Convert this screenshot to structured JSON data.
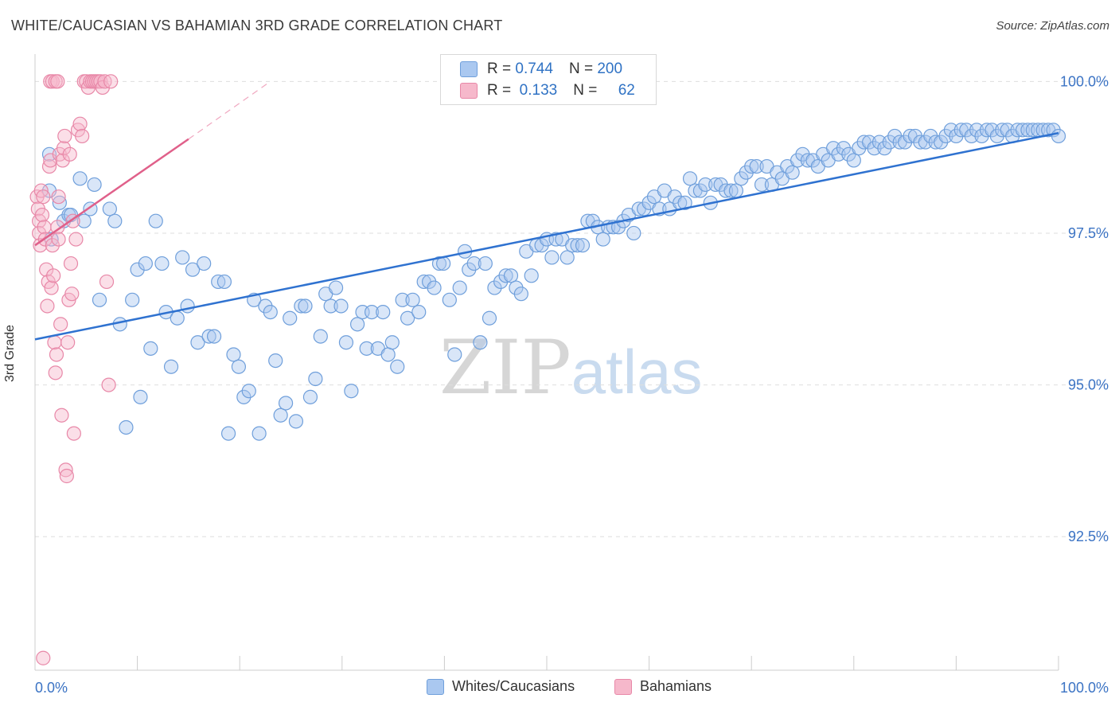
{
  "header": {
    "title": "WHITE/CAUCASIAN VS BAHAMIAN 3RD GRADE CORRELATION CHART",
    "source": "Source: ZipAtlas.com"
  },
  "watermark": {
    "zip": "ZIP",
    "atlas": "atlas"
  },
  "legend": {
    "r_label": "R =",
    "n_label": "N =",
    "series": [
      {
        "r": "0.744",
        "n": "200",
        "fill": "#aac8f0",
        "stroke": "#6f9fdb"
      },
      {
        "r": "0.133",
        "n": "62",
        "fill": "#f6b8cb",
        "stroke": "#e888a8"
      }
    ]
  },
  "chart_data": {
    "type": "scatter",
    "title": "WHITE/CAUCASIAN VS BAHAMIAN 3RD GRADE CORRELATION CHART",
    "xlabel": "",
    "ylabel": "3rd Grade",
    "xlim": [
      0,
      100
    ],
    "ylim": [
      90.3,
      100.45
    ],
    "x_tick_labels": [
      "0.0%",
      "100.0%"
    ],
    "y_ticks": [
      {
        "value": 100.0,
        "label": "100.0%"
      },
      {
        "value": 97.5,
        "label": "97.5%"
      },
      {
        "value": 95.0,
        "label": "95.0%"
      },
      {
        "value": 92.5,
        "label": "92.5%"
      }
    ],
    "grid": true,
    "colors": {
      "blue_fill": "#aac8f0",
      "blue_stroke": "#6f9fdb",
      "blue_line": "#2f72d0",
      "pink_fill": "#f6b8cb",
      "pink_stroke": "#e888a8",
      "pink_line": "#e0608a"
    },
    "series": [
      {
        "name": "Whites/Caucasians",
        "r": 0.744,
        "n": 200,
        "trend": {
          "x0": 0,
          "y0": 95.75,
          "x1": 100,
          "y1": 99.15
        },
        "points": [
          [
            1.4,
            98.8
          ],
          [
            1.4,
            98.2
          ],
          [
            1.6,
            97.4
          ],
          [
            2.4,
            98.0
          ],
          [
            2.8,
            97.7
          ],
          [
            3.3,
            97.8
          ],
          [
            3.5,
            97.8
          ],
          [
            4.4,
            98.4
          ],
          [
            4.8,
            97.7
          ],
          [
            5.4,
            97.9
          ],
          [
            5.8,
            98.3
          ],
          [
            6.3,
            96.4
          ],
          [
            7.3,
            97.9
          ],
          [
            7.8,
            97.7
          ],
          [
            8.3,
            96.0
          ],
          [
            8.9,
            94.3
          ],
          [
            9.5,
            96.4
          ],
          [
            10.0,
            96.9
          ],
          [
            10.3,
            94.8
          ],
          [
            10.8,
            97.0
          ],
          [
            11.3,
            95.6
          ],
          [
            11.8,
            97.7
          ],
          [
            12.4,
            97.0
          ],
          [
            12.8,
            96.2
          ],
          [
            13.3,
            95.3
          ],
          [
            13.9,
            96.1
          ],
          [
            14.4,
            97.1
          ],
          [
            14.9,
            96.3
          ],
          [
            15.4,
            96.9
          ],
          [
            15.9,
            95.7
          ],
          [
            16.5,
            97.0
          ],
          [
            17.0,
            95.8
          ],
          [
            17.5,
            95.8
          ],
          [
            17.9,
            96.7
          ],
          [
            18.5,
            96.7
          ],
          [
            18.9,
            94.2
          ],
          [
            19.4,
            95.5
          ],
          [
            19.9,
            95.3
          ],
          [
            20.4,
            94.8
          ],
          [
            20.9,
            94.9
          ],
          [
            21.4,
            96.4
          ],
          [
            21.9,
            94.2
          ],
          [
            22.5,
            96.3
          ],
          [
            23.0,
            96.2
          ],
          [
            23.5,
            95.4
          ],
          [
            24.0,
            94.5
          ],
          [
            24.5,
            94.7
          ],
          [
            24.9,
            96.1
          ],
          [
            25.5,
            94.4
          ],
          [
            26.0,
            96.3
          ],
          [
            26.4,
            96.3
          ],
          [
            26.9,
            94.8
          ],
          [
            27.4,
            95.1
          ],
          [
            27.9,
            95.8
          ],
          [
            28.4,
            96.5
          ],
          [
            28.9,
            96.3
          ],
          [
            29.4,
            96.6
          ],
          [
            29.9,
            96.3
          ],
          [
            30.4,
            95.7
          ],
          [
            30.9,
            94.9
          ],
          [
            31.5,
            96.0
          ],
          [
            32.0,
            96.2
          ],
          [
            32.4,
            95.6
          ],
          [
            32.9,
            96.2
          ],
          [
            33.5,
            95.6
          ],
          [
            34.0,
            96.2
          ],
          [
            34.5,
            95.5
          ],
          [
            34.9,
            95.7
          ],
          [
            35.4,
            95.3
          ],
          [
            35.9,
            96.4
          ],
          [
            36.4,
            96.1
          ],
          [
            36.9,
            96.4
          ],
          [
            37.5,
            96.2
          ],
          [
            38.0,
            96.7
          ],
          [
            38.5,
            96.7
          ],
          [
            39.0,
            96.6
          ],
          [
            39.5,
            97.0
          ],
          [
            39.9,
            97.0
          ],
          [
            40.5,
            96.4
          ],
          [
            41.0,
            95.5
          ],
          [
            41.5,
            96.6
          ],
          [
            42.0,
            97.2
          ],
          [
            42.4,
            96.9
          ],
          [
            42.9,
            97.0
          ],
          [
            43.5,
            95.7
          ],
          [
            44.0,
            97.0
          ],
          [
            44.4,
            96.1
          ],
          [
            44.9,
            96.6
          ],
          [
            45.5,
            96.7
          ],
          [
            46.0,
            96.8
          ],
          [
            46.5,
            96.8
          ],
          [
            47.0,
            96.6
          ],
          [
            47.5,
            96.5
          ],
          [
            48.0,
            97.2
          ],
          [
            48.5,
            96.8
          ],
          [
            49.0,
            97.3
          ],
          [
            49.5,
            97.3
          ],
          [
            50.0,
            97.4
          ],
          [
            50.5,
            97.1
          ],
          [
            50.9,
            97.4
          ],
          [
            51.5,
            97.4
          ],
          [
            52.0,
            97.1
          ],
          [
            52.5,
            97.3
          ],
          [
            53.0,
            97.3
          ],
          [
            53.5,
            97.3
          ],
          [
            54.0,
            97.7
          ],
          [
            54.5,
            97.7
          ],
          [
            55.0,
            97.6
          ],
          [
            55.5,
            97.4
          ],
          [
            56.0,
            97.6
          ],
          [
            56.5,
            97.6
          ],
          [
            57.0,
            97.6
          ],
          [
            57.5,
            97.7
          ],
          [
            58.0,
            97.8
          ],
          [
            58.5,
            97.5
          ],
          [
            59.0,
            97.9
          ],
          [
            59.5,
            97.9
          ],
          [
            60.0,
            98.0
          ],
          [
            60.5,
            98.1
          ],
          [
            61.0,
            97.9
          ],
          [
            61.5,
            98.2
          ],
          [
            62.0,
            97.9
          ],
          [
            62.5,
            98.1
          ],
          [
            63.0,
            98.0
          ],
          [
            63.5,
            98.0
          ],
          [
            64.0,
            98.4
          ],
          [
            64.5,
            98.2
          ],
          [
            65.0,
            98.2
          ],
          [
            65.5,
            98.3
          ],
          [
            66.0,
            98.0
          ],
          [
            66.5,
            98.3
          ],
          [
            67.0,
            98.3
          ],
          [
            67.5,
            98.2
          ],
          [
            68.0,
            98.2
          ],
          [
            68.5,
            98.2
          ],
          [
            69.0,
            98.4
          ],
          [
            69.5,
            98.5
          ],
          [
            70.0,
            98.6
          ],
          [
            70.5,
            98.6
          ],
          [
            71.0,
            98.3
          ],
          [
            71.5,
            98.6
          ],
          [
            72.0,
            98.3
          ],
          [
            72.5,
            98.5
          ],
          [
            73.0,
            98.4
          ],
          [
            73.5,
            98.6
          ],
          [
            74.0,
            98.5
          ],
          [
            74.5,
            98.7
          ],
          [
            75.0,
            98.8
          ],
          [
            75.5,
            98.7
          ],
          [
            76.0,
            98.7
          ],
          [
            76.5,
            98.6
          ],
          [
            77.0,
            98.8
          ],
          [
            77.5,
            98.7
          ],
          [
            78.0,
            98.9
          ],
          [
            78.5,
            98.8
          ],
          [
            79.0,
            98.9
          ],
          [
            79.5,
            98.8
          ],
          [
            80.0,
            98.7
          ],
          [
            80.5,
            98.9
          ],
          [
            81.0,
            99.0
          ],
          [
            81.5,
            99.0
          ],
          [
            82.0,
            98.9
          ],
          [
            82.5,
            99.0
          ],
          [
            83.0,
            98.9
          ],
          [
            83.5,
            99.0
          ],
          [
            84.0,
            99.1
          ],
          [
            84.5,
            99.0
          ],
          [
            85.0,
            99.0
          ],
          [
            85.5,
            99.1
          ],
          [
            86.0,
            99.1
          ],
          [
            86.5,
            99.0
          ],
          [
            87.0,
            99.0
          ],
          [
            87.5,
            99.1
          ],
          [
            88.0,
            99.0
          ],
          [
            88.5,
            99.0
          ],
          [
            89.0,
            99.1
          ],
          [
            89.5,
            99.2
          ],
          [
            90.0,
            99.1
          ],
          [
            90.5,
            99.2
          ],
          [
            91.0,
            99.2
          ],
          [
            91.5,
            99.1
          ],
          [
            92.0,
            99.2
          ],
          [
            92.5,
            99.1
          ],
          [
            93.0,
            99.2
          ],
          [
            93.5,
            99.2
          ],
          [
            94.0,
            99.1
          ],
          [
            94.5,
            99.2
          ],
          [
            95.0,
            99.2
          ],
          [
            95.5,
            99.1
          ],
          [
            96.0,
            99.2
          ],
          [
            96.5,
            99.2
          ],
          [
            97.0,
            99.2
          ],
          [
            97.5,
            99.2
          ],
          [
            98.0,
            99.2
          ],
          [
            98.5,
            99.2
          ],
          [
            99.0,
            99.2
          ],
          [
            99.5,
            99.2
          ],
          [
            100.0,
            99.1
          ]
        ]
      },
      {
        "name": "Bahamians",
        "r": 0.133,
        "n": 62,
        "trend": {
          "x0": 0,
          "y0": 97.3,
          "x1": 15,
          "y1": 99.05,
          "dash_to_x": 23,
          "dash_to_y": 100.0
        },
        "points": [
          [
            0.2,
            98.1
          ],
          [
            0.3,
            97.9
          ],
          [
            0.4,
            97.7
          ],
          [
            0.4,
            97.5
          ],
          [
            0.5,
            97.3
          ],
          [
            0.6,
            98.2
          ],
          [
            0.7,
            97.8
          ],
          [
            0.8,
            98.1
          ],
          [
            0.9,
            97.6
          ],
          [
            1.0,
            97.4
          ],
          [
            1.1,
            96.9
          ],
          [
            1.2,
            96.3
          ],
          [
            1.3,
            96.7
          ],
          [
            1.4,
            98.6
          ],
          [
            1.5,
            98.7
          ],
          [
            1.6,
            96.6
          ],
          [
            1.7,
            97.3
          ],
          [
            1.8,
            96.8
          ],
          [
            1.9,
            95.7
          ],
          [
            2.0,
            95.2
          ],
          [
            2.1,
            95.5
          ],
          [
            2.2,
            97.6
          ],
          [
            2.3,
            97.4
          ],
          [
            2.4,
            98.8
          ],
          [
            2.5,
            96.0
          ],
          [
            2.6,
            94.5
          ],
          [
            2.7,
            98.7
          ],
          [
            2.8,
            98.9
          ],
          [
            2.9,
            99.1
          ],
          [
            3.0,
            93.6
          ],
          [
            3.1,
            93.5
          ],
          [
            3.2,
            95.7
          ],
          [
            3.3,
            96.4
          ],
          [
            3.4,
            98.8
          ],
          [
            3.5,
            97.0
          ],
          [
            3.6,
            96.5
          ],
          [
            3.7,
            97.7
          ],
          [
            3.8,
            94.2
          ],
          [
            4.0,
            97.4
          ],
          [
            4.2,
            99.2
          ],
          [
            4.4,
            99.3
          ],
          [
            4.6,
            99.1
          ],
          [
            4.8,
            100.0
          ],
          [
            5.0,
            100.0
          ],
          [
            5.2,
            99.9
          ],
          [
            5.4,
            100.0
          ],
          [
            5.6,
            100.0
          ],
          [
            5.8,
            100.0
          ],
          [
            6.0,
            100.0
          ],
          [
            6.2,
            100.0
          ],
          [
            6.4,
            100.0
          ],
          [
            6.6,
            99.9
          ],
          [
            6.8,
            100.0
          ],
          [
            7.0,
            96.7
          ],
          [
            7.2,
            95.0
          ],
          [
            7.4,
            100.0
          ],
          [
            1.5,
            100.0
          ],
          [
            1.7,
            100.0
          ],
          [
            2.0,
            100.0
          ],
          [
            2.2,
            100.0
          ],
          [
            0.8,
            90.5
          ],
          [
            2.3,
            98.1
          ]
        ]
      }
    ]
  },
  "bottom_legend": {
    "items": [
      {
        "label": "Whites/Caucasians",
        "fill": "#aac8f0",
        "stroke": "#6f9fdb"
      },
      {
        "label": "Bahamians",
        "fill": "#f6b8cb",
        "stroke": "#e888a8"
      }
    ]
  }
}
